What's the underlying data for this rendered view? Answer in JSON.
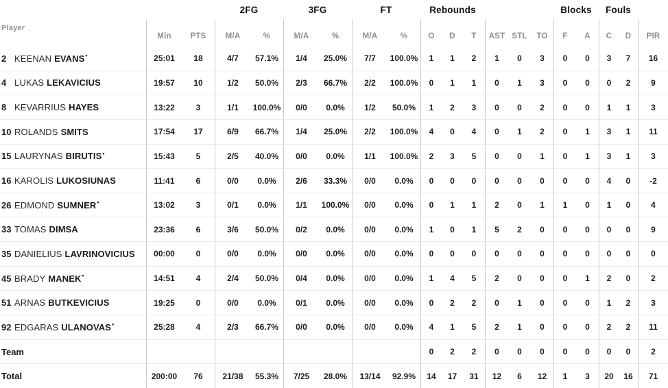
{
  "table": {
    "player_column_label": "Player",
    "group_headers": [
      "2FG",
      "3FG",
      "FT",
      "Rebounds",
      "Blocks",
      "Fouls"
    ],
    "stat_headers": [
      "Min",
      "PTS",
      "M/A",
      "%",
      "M/A",
      "%",
      "M/A",
      "%",
      "O",
      "D",
      "T",
      "AST",
      "STL",
      "TO",
      "F",
      "A",
      "C",
      "D",
      "PIR"
    ],
    "starter_mark": "•",
    "rows": [
      {
        "number": "2",
        "first": "KEENAN",
        "last": "EVANS",
        "starter": true,
        "stats": [
          "25:01",
          "18",
          "4/7",
          "57.1%",
          "1/4",
          "25.0%",
          "7/7",
          "100.0%",
          "1",
          "1",
          "2",
          "1",
          "0",
          "3",
          "0",
          "0",
          "3",
          "7",
          "16"
        ]
      },
      {
        "number": "4",
        "first": "LUKAS",
        "last": "LEKAVICIUS",
        "starter": false,
        "stats": [
          "19:57",
          "10",
          "1/2",
          "50.0%",
          "2/3",
          "66.7%",
          "2/2",
          "100.0%",
          "0",
          "1",
          "1",
          "0",
          "1",
          "3",
          "0",
          "0",
          "0",
          "2",
          "9"
        ]
      },
      {
        "number": "8",
        "first": "KEVARRIUS",
        "last": "HAYES",
        "starter": false,
        "stats": [
          "13:22",
          "3",
          "1/1",
          "100.0%",
          "0/0",
          "0.0%",
          "1/2",
          "50.0%",
          "1",
          "2",
          "3",
          "0",
          "0",
          "2",
          "0",
          "0",
          "1",
          "1",
          "3"
        ]
      },
      {
        "number": "10",
        "first": "ROLANDS",
        "last": "SMITS",
        "starter": false,
        "stats": [
          "17:54",
          "17",
          "6/9",
          "66.7%",
          "1/4",
          "25.0%",
          "2/2",
          "100.0%",
          "4",
          "0",
          "4",
          "0",
          "1",
          "2",
          "0",
          "1",
          "3",
          "1",
          "11"
        ]
      },
      {
        "number": "15",
        "first": "LAURYNAS",
        "last": "BIRUTIS",
        "starter": true,
        "stats": [
          "15:43",
          "5",
          "2/5",
          "40.0%",
          "0/0",
          "0.0%",
          "1/1",
          "100.0%",
          "2",
          "3",
          "5",
          "0",
          "0",
          "1",
          "0",
          "1",
          "3",
          "1",
          "3"
        ]
      },
      {
        "number": "16",
        "first": "KAROLIS",
        "last": "LUKOSIUNAS",
        "starter": false,
        "stats": [
          "11:41",
          "6",
          "0/0",
          "0.0%",
          "2/6",
          "33.3%",
          "0/0",
          "0.0%",
          "0",
          "0",
          "0",
          "0",
          "0",
          "0",
          "0",
          "0",
          "4",
          "0",
          "-2"
        ]
      },
      {
        "number": "26",
        "first": "EDMOND",
        "last": "SUMNER",
        "starter": true,
        "stats": [
          "13:02",
          "3",
          "0/1",
          "0.0%",
          "1/1",
          "100.0%",
          "0/0",
          "0.0%",
          "0",
          "1",
          "1",
          "2",
          "0",
          "1",
          "1",
          "0",
          "1",
          "0",
          "4"
        ]
      },
      {
        "number": "33",
        "first": "TOMAS",
        "last": "DIMSA",
        "starter": false,
        "stats": [
          "23:36",
          "6",
          "3/6",
          "50.0%",
          "0/2",
          "0.0%",
          "0/0",
          "0.0%",
          "1",
          "0",
          "1",
          "5",
          "2",
          "0",
          "0",
          "0",
          "0",
          "0",
          "9"
        ]
      },
      {
        "number": "35",
        "first": "DANIELIUS",
        "last": "LAVRINOVICIUS",
        "starter": false,
        "stats": [
          "00:00",
          "0",
          "0/0",
          "0.0%",
          "0/0",
          "0.0%",
          "0/0",
          "0.0%",
          "0",
          "0",
          "0",
          "0",
          "0",
          "0",
          "0",
          "0",
          "0",
          "0",
          "0"
        ]
      },
      {
        "number": "45",
        "first": "BRADY",
        "last": "MANEK",
        "starter": true,
        "stats": [
          "14:51",
          "4",
          "2/4",
          "50.0%",
          "0/4",
          "0.0%",
          "0/0",
          "0.0%",
          "1",
          "4",
          "5",
          "2",
          "0",
          "0",
          "0",
          "1",
          "2",
          "0",
          "2"
        ]
      },
      {
        "number": "51",
        "first": "ARNAS",
        "last": "BUTKEVICIUS",
        "starter": false,
        "stats": [
          "19:25",
          "0",
          "0/0",
          "0.0%",
          "0/1",
          "0.0%",
          "0/0",
          "0.0%",
          "0",
          "2",
          "2",
          "0",
          "1",
          "0",
          "0",
          "0",
          "1",
          "2",
          "3"
        ]
      },
      {
        "number": "92",
        "first": "EDGARAS",
        "last": "ULANOVAS",
        "starter": true,
        "stats": [
          "25:28",
          "4",
          "2/3",
          "66.7%",
          "0/0",
          "0.0%",
          "0/0",
          "0.0%",
          "4",
          "1",
          "5",
          "2",
          "1",
          "0",
          "0",
          "0",
          "2",
          "2",
          "11"
        ]
      }
    ],
    "team_row": {
      "label": "Team",
      "stats": [
        "",
        "",
        "",
        "",
        "",
        "",
        "",
        "",
        "0",
        "2",
        "2",
        "0",
        "0",
        "0",
        "0",
        "0",
        "0",
        "0",
        "2"
      ]
    },
    "total_row": {
      "label": "Total",
      "stats": [
        "200:00",
        "76",
        "21/38",
        "55.3%",
        "7/25",
        "28.0%",
        "13/14",
        "92.9%",
        "14",
        "17",
        "31",
        "12",
        "6",
        "12",
        "1",
        "3",
        "20",
        "16",
        "71"
      ]
    }
  }
}
